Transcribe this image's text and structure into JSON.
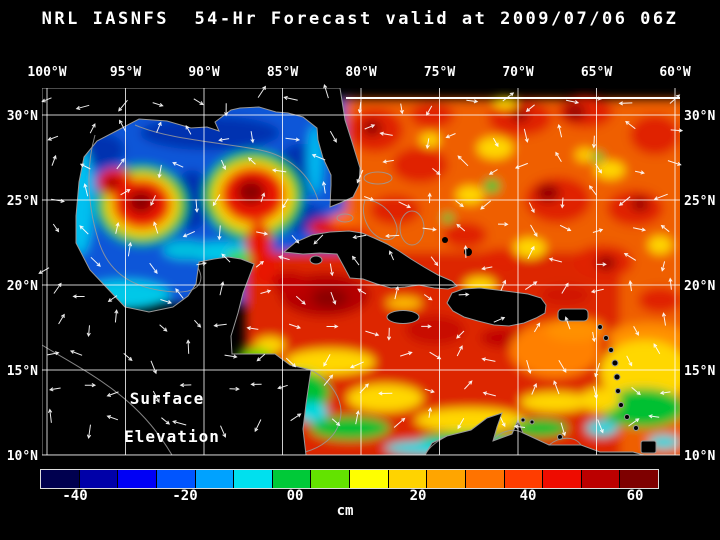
{
  "title": "NRL IASNFS  54-Hr Forecast valid at 2009/07/06 06Z",
  "colors": {
    "background": "#000000",
    "text": "#ffffff"
  },
  "map": {
    "top_axis_labels": [
      "100°W",
      "95°W",
      "90°W",
      "85°W",
      "80°W",
      "75°W",
      "70°W",
      "65°W",
      "60°W"
    ],
    "left_axis_labels": [
      "30°N",
      "25°N",
      "20°N",
      "15°N",
      "10°N"
    ],
    "right_axis_labels": [
      "30°N",
      "25°N",
      "20°N",
      "15°N",
      "10°N"
    ],
    "overlay_label": {
      "line1": "Surface",
      "line2": "Elevation"
    }
  },
  "colorbar": {
    "unit": "cm",
    "tick_labels": [
      "-40",
      "-20",
      "00",
      "20",
      "40",
      "60"
    ],
    "segment_colors": [
      "#00004f",
      "#0000a8",
      "#0000f5",
      "#0055ff",
      "#00a2ff",
      "#00e0ee",
      "#00c938",
      "#63e300",
      "#ffff00",
      "#ffd300",
      "#ffa500",
      "#ff7300",
      "#ff3d00",
      "#ee0c00",
      "#bb0000",
      "#7e0000"
    ]
  },
  "chart_data": {
    "type": "heatmap",
    "title": "NRL IASNFS 54-Hr Forecast valid at 2009/07/06 06Z",
    "variable": "Surface Elevation",
    "units": "cm",
    "x_axis": {
      "ticks": [
        "100°W",
        "95°W",
        "90°W",
        "85°W",
        "80°W",
        "75°W",
        "70°W",
        "65°W",
        "60°W"
      ]
    },
    "y_axis": {
      "ticks": [
        "30°N",
        "25°N",
        "20°N",
        "15°N",
        "10°N"
      ]
    },
    "colorbar": {
      "tick_values": [
        -40,
        -20,
        0,
        20,
        40,
        60
      ],
      "n_segments": 16
    },
    "legend_position": "bottom",
    "grid": true
  }
}
